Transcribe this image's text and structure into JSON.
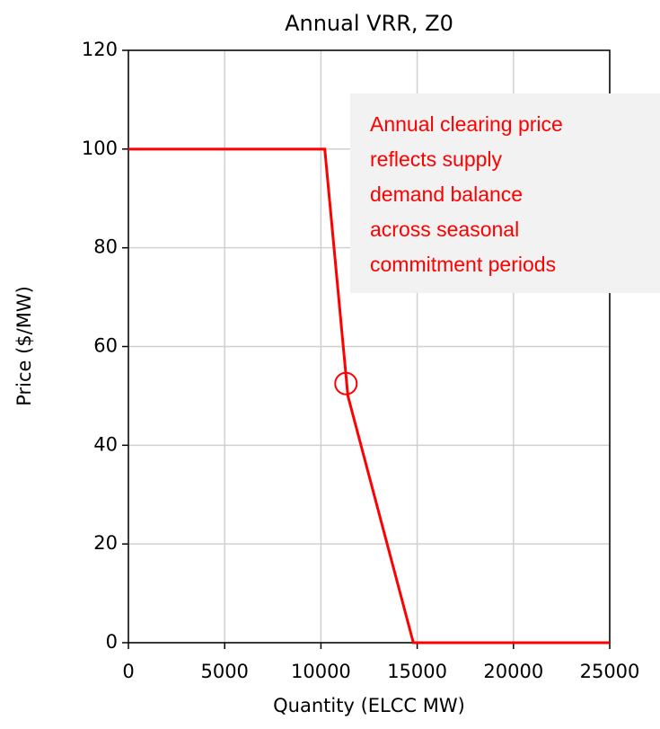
{
  "chart_data": {
    "type": "line",
    "title": "Annual VRR, Z0",
    "x_label": "Quantity (ELCC MW)",
    "y_label": "Price ($/MW)",
    "x": [
      0,
      10200,
      11400,
      14800,
      25000
    ],
    "values": [
      100,
      100,
      50,
      0,
      0
    ],
    "color": "#ff0000",
    "marker": {
      "x": 11300,
      "y": 52.5,
      "color": "#ff0000"
    },
    "xlim": [
      0,
      25000
    ],
    "xticks": [
      0,
      5000,
      10000,
      15000,
      20000,
      25000
    ],
    "ylim": [
      0,
      120
    ],
    "yticks": [
      0,
      20,
      40,
      60,
      80,
      100,
      120
    ],
    "grid": true,
    "annotation": [
      "Annual clearing price",
      "reflects supply",
      "demand balance",
      "across seasonal",
      "commitment periods"
    ]
  }
}
